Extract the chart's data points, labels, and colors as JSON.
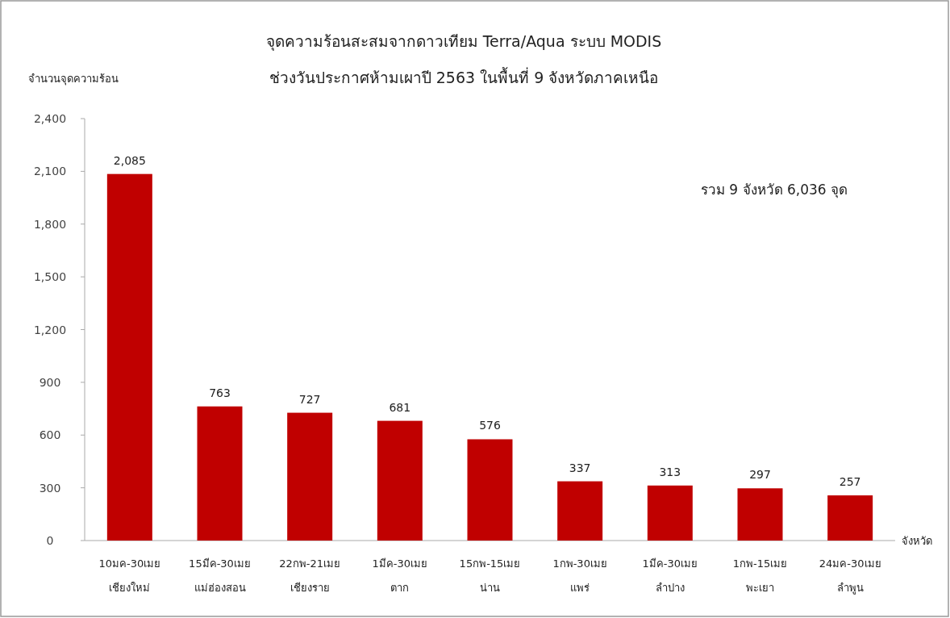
{
  "chart_data": {
    "type": "bar",
    "title": "จุดความร้อนสะสมจากดาวเทียม  Terra/Aqua ระบบ MODIS",
    "subtitle": "ช่วงวันประกาศห้ามเผาปี 2563 ในพื้นที่ 9 จังหวัดภาคเหนือ",
    "ylabel": "จำนวนจุดความร้อน",
    "xlabel": "จังหวัด",
    "categories": [
      "10มค-30เมย\nเชียงใหม่",
      "15มีค-30เมย\nแม่ฮ่องสอน",
      "22กพ-21เมย\nเชียงราย",
      "1มีค-30เมย\nตาก",
      "15กพ-15เมย\nน่าน",
      "1กพ-30เมย\nแพร่",
      "1มีค-30เมย\nลำปาง",
      "1กพ-15เมย\nพะเยา",
      "24มค-30เมย\nลำพูน"
    ],
    "values": [
      2085,
      763,
      727,
      681,
      576,
      337,
      313,
      297,
      257
    ],
    "value_labels": [
      "2,085",
      "763",
      "727",
      "681",
      "576",
      "337",
      "313",
      "297",
      "257"
    ],
    "color": "#c00000",
    "ylim": [
      0,
      2400
    ],
    "yticks": [
      0,
      300,
      600,
      900,
      {
        "value": 1200,
        "label": "1,200"
      },
      {
        "value": 1500,
        "label": "1,500"
      },
      {
        "value": 1800,
        "label": "1,800"
      },
      {
        "value": 2100,
        "label": "2,100"
      },
      {
        "value": 2400,
        "label": "2,400"
      }
    ],
    "annotations": [
      "รวม 9 จังหวัด 6,036 จุด"
    ],
    "grid": false
  }
}
